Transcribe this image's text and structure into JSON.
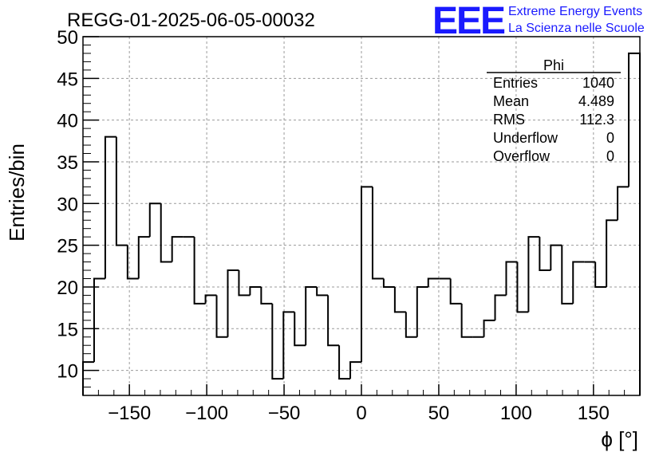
{
  "window": {
    "title": "REGG-01-2025-06-05-00032"
  },
  "logo": {
    "mark": "EEE",
    "line1": "Extreme Energy Events",
    "line2": "La Scienza nelle Scuole",
    "color": "#1a1aff"
  },
  "stats": {
    "name": "Phi",
    "rows": [
      {
        "label": "Entries",
        "value": "1040"
      },
      {
        "label": "Mean",
        "value": "4.489"
      },
      {
        "label": "RMS",
        "value": "112.3"
      },
      {
        "label": "Underflow",
        "value": "0"
      },
      {
        "label": "Overflow",
        "value": "0"
      }
    ]
  },
  "chart_data": {
    "type": "histogram",
    "title": "REGG-01-2025-06-05-00032",
    "xlabel": "ϕ [°]",
    "ylabel": "Entries/bin",
    "xlim": [
      -180,
      180
    ],
    "ylim": [
      7,
      50
    ],
    "grid": true,
    "x_ticks": [
      -150,
      -100,
      -50,
      0,
      50,
      100,
      150
    ],
    "x_tick_labels": [
      "−150",
      "−100",
      "−50",
      "0",
      "50",
      "100",
      "150"
    ],
    "y_ticks": [
      10,
      15,
      20,
      25,
      30,
      35,
      40,
      45,
      50
    ],
    "y_tick_labels": [
      "10",
      "15",
      "20",
      "25",
      "30",
      "35",
      "40",
      "45",
      "50"
    ],
    "bin_edges": [
      -180,
      -172.8,
      -165.6,
      -158.4,
      -151.2,
      -144,
      -136.8,
      -129.6,
      -122.4,
      -115.2,
      -108,
      -100.8,
      -93.6,
      -86.4,
      -79.2,
      -72,
      -64.8,
      -57.6,
      -50.4,
      -43.2,
      -36,
      -28.8,
      -21.6,
      -14.4,
      -7.2,
      0,
      7.2,
      14.4,
      21.6,
      28.8,
      36,
      43.2,
      50.4,
      57.6,
      64.8,
      72,
      79.2,
      86.4,
      93.6,
      100.8,
      108,
      115.2,
      122.4,
      129.6,
      136.8,
      144,
      151.2,
      158.4,
      165.6,
      172.8,
      180
    ],
    "counts": [
      11,
      21,
      38,
      25,
      21,
      26,
      30,
      23,
      26,
      26,
      18,
      19,
      14,
      22,
      19,
      20,
      18,
      9,
      17,
      13,
      20,
      19,
      13,
      9,
      11,
      32,
      21,
      20,
      17,
      14,
      20,
      21,
      21,
      18,
      14,
      14,
      16,
      19,
      23,
      17,
      26,
      22,
      25,
      18,
      23,
      23,
      20,
      28,
      32,
      48
    ],
    "line_color": "#000000"
  }
}
